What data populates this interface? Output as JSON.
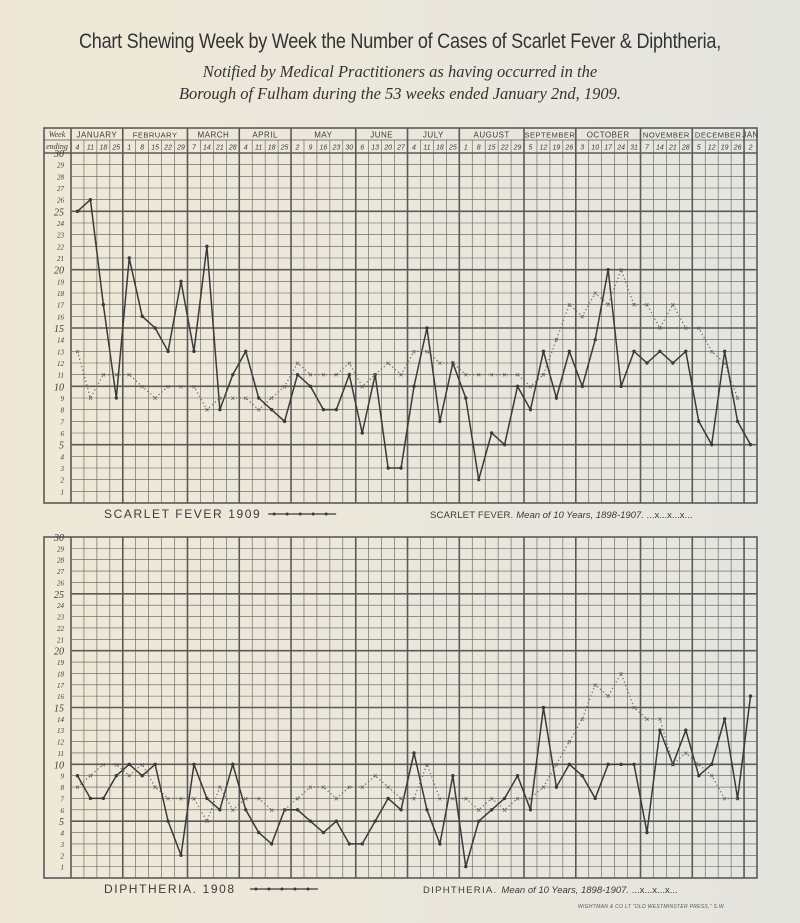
{
  "title": "Chart Shewing Week by Week the Number of Cases of Scarlet Fever & Diphtheria,",
  "subtitle_line1": "Notified by Medical Practitioners as having occurred in the",
  "subtitle_line2": "Borough of Fulham during the 53 weeks ended January 2nd, 1909.",
  "week_header": [
    "Week",
    "ending"
  ],
  "imprint": "WIGHTMAN & CO LT \"OLD WESTMINSTER PRESS,\" S.W.",
  "months": [
    {
      "label": "JANUARY",
      "weeks": [
        "4",
        "11",
        "18",
        "25"
      ]
    },
    {
      "label": "FEBRUARY",
      "weeks": [
        "1",
        "8",
        "15",
        "22",
        "29"
      ]
    },
    {
      "label": "MARCH",
      "weeks": [
        "7",
        "14",
        "21",
        "28"
      ]
    },
    {
      "label": "APRIL",
      "weeks": [
        "4",
        "11",
        "18",
        "25"
      ]
    },
    {
      "label": "MAY",
      "weeks": [
        "2",
        "9",
        "16",
        "23",
        "30"
      ]
    },
    {
      "label": "JUNE",
      "weeks": [
        "6",
        "13",
        "20",
        "27"
      ]
    },
    {
      "label": "JULY",
      "weeks": [
        "4",
        "11",
        "18",
        "25"
      ]
    },
    {
      "label": "AUGUST",
      "weeks": [
        "1",
        "8",
        "15",
        "22",
        "29"
      ]
    },
    {
      "label": "SEPTEMBER",
      "weeks": [
        "5",
        "12",
        "19",
        "26"
      ]
    },
    {
      "label": "OCTOBER",
      "weeks": [
        "3",
        "10",
        "17",
        "24",
        "31"
      ]
    },
    {
      "label": "NOVEMBER",
      "weeks": [
        "7",
        "14",
        "21",
        "28"
      ]
    },
    {
      "label": "DECEMBER",
      "weeks": [
        "5",
        "12",
        "19",
        "26"
      ]
    },
    {
      "label": "JAN",
      "weeks": [
        "2"
      ]
    }
  ],
  "colors": {
    "ink": "#3a3a3a",
    "grid": "#5a5a5a",
    "paper": "#ebe7db"
  },
  "chart_data": [
    {
      "type": "line",
      "ylim": [
        0,
        30
      ],
      "yticks": [
        1,
        2,
        3,
        4,
        5,
        6,
        7,
        8,
        9,
        10,
        11,
        12,
        13,
        14,
        15,
        16,
        17,
        18,
        19,
        20,
        21,
        22,
        23,
        24,
        25,
        26,
        27,
        28,
        29,
        30
      ],
      "grid": true,
      "legend_placement": "bottom",
      "legend": {
        "current": "SCARLET FEVER 1909",
        "mean_name": "SCARLET FEVER.",
        "mean_desc": "Mean of 10 Years, 1898-1907.",
        "mean_marks": "...x...x...x..."
      },
      "series": [
        {
          "name": "SCARLET FEVER 1909",
          "style": "solid",
          "values": [
            25,
            26,
            17,
            9,
            21,
            16,
            15,
            13,
            19,
            13,
            22,
            8,
            11,
            13,
            9,
            8,
            7,
            11,
            10,
            8,
            8,
            11,
            6,
            11,
            3,
            3,
            10,
            15,
            7,
            12,
            9,
            2,
            6,
            5,
            10,
            8,
            13,
            9,
            13,
            10,
            14,
            20,
            10,
            13,
            12,
            13,
            12,
            13,
            7,
            5,
            13,
            7,
            5
          ]
        },
        {
          "name": "SCARLET FEVER. Mean of 10 Years, 1898-1907.",
          "style": "dotted-x",
          "values": [
            13,
            9,
            11,
            11,
            11,
            10,
            9,
            10,
            10,
            10,
            8,
            9,
            9,
            9,
            8,
            9,
            10,
            12,
            11,
            11,
            11,
            12,
            10,
            11,
            12,
            11,
            13,
            13,
            12,
            12,
            11,
            11,
            11,
            11,
            11,
            10,
            11,
            14,
            17,
            16,
            18,
            17,
            20,
            17,
            17,
            15,
            17,
            15,
            15,
            13,
            12,
            9,
            null
          ]
        }
      ]
    },
    {
      "type": "line",
      "ylim": [
        0,
        30
      ],
      "yticks": [
        1,
        2,
        3,
        4,
        5,
        6,
        7,
        8,
        9,
        10,
        11,
        12,
        13,
        14,
        15,
        16,
        17,
        18,
        19,
        20,
        21,
        22,
        23,
        24,
        25,
        26,
        27,
        28,
        29,
        30
      ],
      "grid": true,
      "legend_placement": "bottom",
      "legend": {
        "current": "DIPHTHERIA. 1908",
        "mean_name": "DIPHTHERIA.",
        "mean_desc": "Mean of 10 Years, 1898-1907.",
        "mean_marks": "...x...x...x..."
      },
      "series": [
        {
          "name": "DIPHTHERIA. 1908",
          "style": "solid",
          "values": [
            9,
            7,
            7,
            9,
            10,
            9,
            10,
            5,
            2,
            10,
            7,
            6,
            10,
            6,
            4,
            3,
            6,
            6,
            5,
            4,
            5,
            3,
            3,
            5,
            7,
            6,
            11,
            6,
            3,
            9,
            1,
            5,
            6,
            7,
            9,
            6,
            15,
            8,
            10,
            9,
            7,
            10,
            10,
            10,
            4,
            13,
            10,
            13,
            9,
            10,
            14,
            7,
            16
          ]
        },
        {
          "name": "DIPHTHERIA. Mean of 10 Years, 1898-1907.",
          "style": "dotted-x",
          "values": [
            8,
            9,
            10,
            10,
            9,
            10,
            8,
            7,
            7,
            7,
            5,
            8,
            6,
            7,
            7,
            6,
            6,
            7,
            8,
            8,
            7,
            8,
            8,
            9,
            8,
            7,
            7,
            10,
            7,
            7,
            7,
            6,
            7,
            6,
            7,
            7,
            8,
            10,
            12,
            14,
            17,
            16,
            18,
            15,
            14,
            14,
            10,
            11,
            10,
            9,
            7,
            7,
            null
          ]
        }
      ]
    }
  ]
}
